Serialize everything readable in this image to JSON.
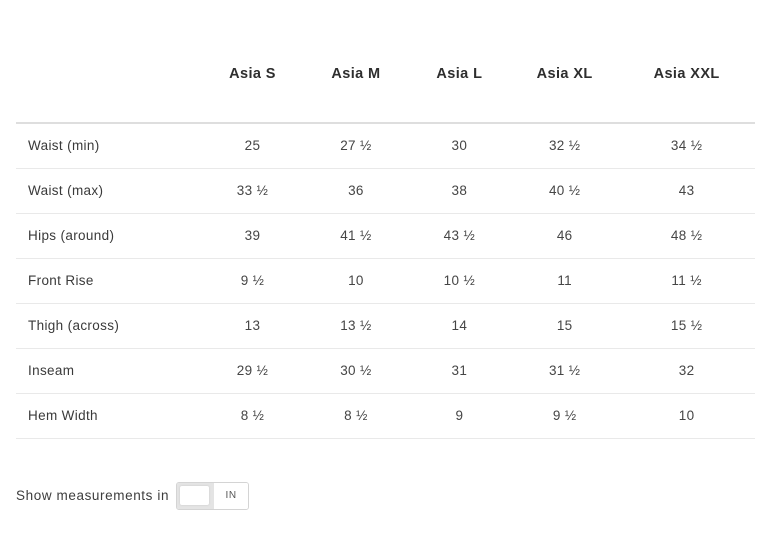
{
  "table": {
    "columns": [
      "Asia S",
      "Asia M",
      "Asia L",
      "Asia XL",
      "Asia XXL"
    ],
    "rows": [
      {
        "label": "Waist (min)",
        "values": [
          "25",
          "27 ½",
          "30",
          "32 ½",
          "34 ½"
        ]
      },
      {
        "label": "Waist (max)",
        "values": [
          "33 ½",
          "36",
          "38",
          "40 ½",
          "43"
        ]
      },
      {
        "label": "Hips (around)",
        "values": [
          "39",
          "41 ½",
          "43 ½",
          "46",
          "48 ½"
        ]
      },
      {
        "label": "Front Rise",
        "values": [
          "9 ½",
          "10",
          "10 ½",
          "11",
          "11 ½"
        ]
      },
      {
        "label": "Thigh (across)",
        "values": [
          "13",
          "13 ½",
          "14",
          "15",
          "15 ½"
        ]
      },
      {
        "label": "Inseam",
        "values": [
          "29 ½",
          "30 ½",
          "31",
          "31 ½",
          "32"
        ]
      },
      {
        "label": "Hem Width",
        "values": [
          "8 ½",
          "8 ½",
          "9",
          "9 ½",
          "10"
        ]
      }
    ]
  },
  "footer": {
    "label": "Show measurements in",
    "unit": "IN"
  },
  "colors": {
    "header_text": "#2e2e2e",
    "body_text": "#454545",
    "header_divider": "#dedede",
    "row_divider": "#e9e9e9",
    "switch_track": "#e4e4e4",
    "switch_border": "#d4d4d4"
  }
}
